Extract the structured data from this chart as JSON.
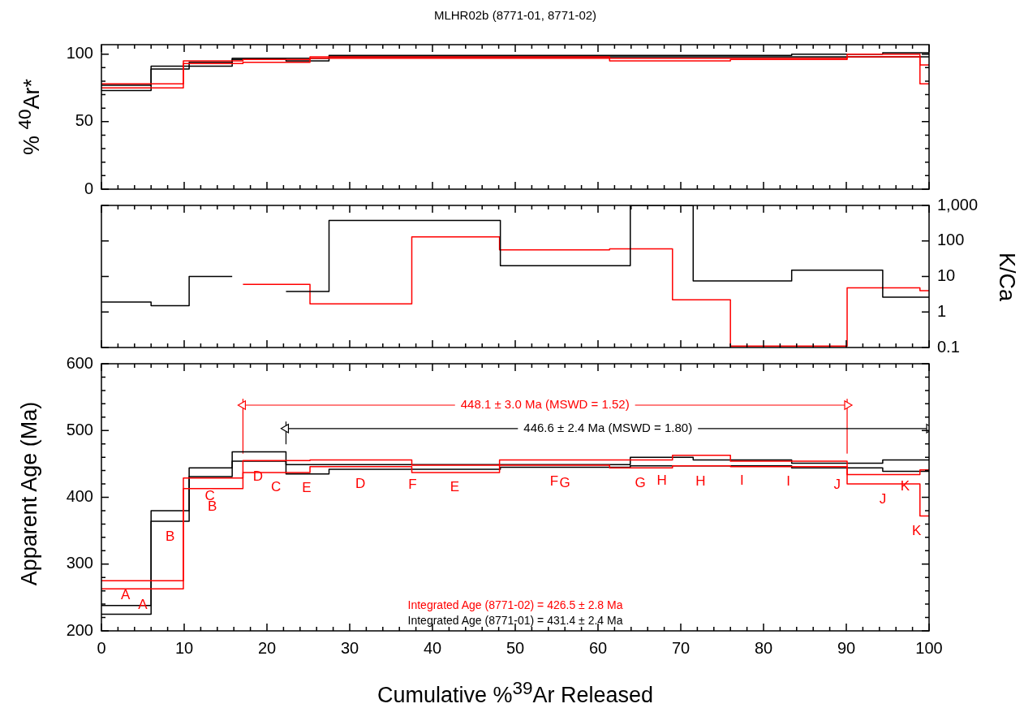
{
  "chart_data": [
    {
      "type": "step",
      "title": "MLHR02b (8771-01, 8771-02)",
      "ylabel": "% $^{40}$Ar*",
      "xlim": [
        0,
        100
      ],
      "xticks": [
        0,
        {
          "value": 2,
          "label": null
        },
        {
          "value": 4,
          "label": null
        },
        {
          "value": 6,
          "label": null
        },
        {
          "value": 8,
          "label": null
        },
        10,
        {
          "value": 12,
          "label": null
        },
        {
          "value": 14,
          "label": null
        },
        {
          "value": 16,
          "label": null
        },
        {
          "value": 18,
          "label": null
        },
        20,
        {
          "value": 22,
          "label": null
        },
        {
          "value": 24,
          "label": null
        },
        {
          "value": 26,
          "label": null
        },
        {
          "value": 28,
          "label": null
        },
        30,
        {
          "value": 32,
          "label": null
        },
        {
          "value": 34,
          "label": null
        },
        {
          "value": 36,
          "label": null
        },
        {
          "value": 38,
          "label": null
        },
        40,
        {
          "value": 42,
          "label": null
        },
        {
          "value": 44,
          "label": null
        },
        {
          "value": 46,
          "label": null
        },
        {
          "value": 48,
          "label": null
        },
        50,
        {
          "value": 52,
          "label": null
        },
        {
          "value": 54,
          "label": null
        },
        {
          "value": 56,
          "label": null
        },
        {
          "value": 58,
          "label": null
        },
        60,
        {
          "value": 62,
          "label": null
        },
        {
          "value": 64,
          "label": null
        },
        {
          "value": 66,
          "label": null
        },
        {
          "value": 68,
          "label": null
        },
        70,
        {
          "value": 72,
          "label": null
        },
        {
          "value": 74,
          "label": null
        },
        {
          "value": 76,
          "label": null
        },
        {
          "value": 78,
          "label": null
        },
        80,
        {
          "value": 82,
          "label": null
        },
        {
          "value": 84,
          "label": null
        },
        {
          "value": 86,
          "label": null
        },
        {
          "value": 88,
          "label": null
        },
        90,
        {
          "value": 92,
          "label": null
        },
        {
          "value": 94,
          "label": null
        },
        {
          "value": 96,
          "label": null
        },
        {
          "value": 98,
          "label": null
        },
        100
      ],
      "ylim": [
        0,
        107
      ],
      "yticks": [
        0,
        {
          "value": 10,
          "label": null
        },
        {
          "value": 20,
          "label": null
        },
        {
          "value": 30,
          "label": null
        },
        {
          "value": 40,
          "label": null
        },
        50,
        {
          "value": 60,
          "label": null
        },
        {
          "value": 70,
          "label": null
        },
        {
          "value": 80,
          "label": null
        },
        {
          "value": 90,
          "label": null
        },
        100
      ],
      "tick_labels": "y",
      "grid": false,
      "legend": false,
      "series": [
        {
          "color": "#ff0000",
          "x": [
            0,
            9.9,
            17.1,
            25.2,
            37.5,
            48.1,
            61.4,
            69.0,
            76.0,
            90.1,
            98.9,
            100
          ],
          "values": [
            78,
            95,
            96,
            98,
            98,
            98,
            97,
            97,
            97,
            100,
            92,
            92
          ]
        },
        {
          "color": "#ff0000",
          "x": [
            0,
            9.9,
            17.1,
            25.2,
            37.5,
            48.1,
            61.4,
            69.0,
            76.0,
            90.1,
            98.9,
            100
          ],
          "values": [
            75,
            93,
            94,
            97,
            97,
            97,
            95,
            95,
            96,
            98,
            78,
            78
          ]
        },
        {
          "color": "#000000",
          "x": [
            0,
            6.0,
            10.6,
            15.8,
            22.3,
            27.5,
            48.2,
            63.9,
            71.5,
            83.4,
            94.4,
            100
          ],
          "values": [
            77,
            91,
            94,
            97,
            97,
            99,
            99,
            99,
            99,
            100,
            101,
            101
          ]
        },
        {
          "color": "#000000",
          "x": [
            0,
            6.0,
            10.6,
            15.8,
            22.3,
            27.5,
            48.2,
            63.9,
            71.5,
            83.4,
            94.4,
            100
          ],
          "values": [
            73,
            89,
            91,
            96,
            95,
            98,
            98,
            98,
            98,
            98,
            98,
            98
          ]
        }
      ]
    },
    {
      "type": "step",
      "y2label": "K/Ca",
      "xlim": [
        0,
        100
      ],
      "xticks": [
        0,
        {
          "value": 2,
          "label": null
        },
        {
          "value": 4,
          "label": null
        },
        {
          "value": 6,
          "label": null
        },
        {
          "value": 8,
          "label": null
        },
        10,
        {
          "value": 12,
          "label": null
        },
        {
          "value": 14,
          "label": null
        },
        {
          "value": 16,
          "label": null
        },
        {
          "value": 18,
          "label": null
        },
        20,
        {
          "value": 22,
          "label": null
        },
        {
          "value": 24,
          "label": null
        },
        {
          "value": 26,
          "label": null
        },
        {
          "value": 28,
          "label": null
        },
        30,
        {
          "value": 32,
          "label": null
        },
        {
          "value": 34,
          "label": null
        },
        {
          "value": 36,
          "label": null
        },
        {
          "value": 38,
          "label": null
        },
        40,
        {
          "value": 42,
          "label": null
        },
        {
          "value": 44,
          "label": null
        },
        {
          "value": 46,
          "label": null
        },
        {
          "value": 48,
          "label": null
        },
        50,
        {
          "value": 52,
          "label": null
        },
        {
          "value": 54,
          "label": null
        },
        {
          "value": 56,
          "label": null
        },
        {
          "value": 58,
          "label": null
        },
        60,
        {
          "value": 62,
          "label": null
        },
        {
          "value": 64,
          "label": null
        },
        {
          "value": 66,
          "label": null
        },
        {
          "value": 68,
          "label": null
        },
        70,
        {
          "value": 72,
          "label": null
        },
        {
          "value": 74,
          "label": null
        },
        {
          "value": 76,
          "label": null
        },
        {
          "value": 78,
          "label": null
        },
        80,
        {
          "value": 82,
          "label": null
        },
        {
          "value": 84,
          "label": null
        },
        {
          "value": 86,
          "label": null
        },
        {
          "value": 88,
          "label": null
        },
        90,
        {
          "value": 92,
          "label": null
        },
        {
          "value": 94,
          "label": null
        },
        {
          "value": 96,
          "label": null
        },
        {
          "value": 98,
          "label": null
        },
        100
      ],
      "y2lim": [
        0.1,
        1000
      ],
      "y2ticks": [
        0.1,
        1,
        10,
        100,
        {
          "value": 1000,
          "label": "1,000"
        }
      ],
      "log": "y2",
      "tick_labels": "y",
      "grid": false,
      "legend": false,
      "series": [
        {
          "color": "#000000",
          "axis": "y2",
          "x": [
            0,
            6.0,
            10.6,
            15.8,
            22.3,
            27.5,
            48.2,
            63.9,
            71.5,
            83.4,
            94.4,
            100
          ],
          "values": [
            1.9,
            1.5,
            10,
            null,
            3.8,
            380,
            20,
            1000,
            7.5,
            15,
            2.6,
            2.6
          ]
        },
        {
          "color": "#ff0000",
          "axis": "y2",
          "x": [
            17.1,
            25.2,
            37.5,
            48.1,
            61.4,
            69.0,
            76.0,
            90.1,
            98.9,
            100
          ],
          "values": [
            6,
            1.7,
            130,
            56,
            60,
            2.2,
            0.11,
            4.8,
            4,
            4
          ]
        }
      ]
    },
    {
      "type": "step",
      "xlabel": "Cumulative %$^{39}$Ar Released",
      "ylabel": "Apparent Age (Ma)",
      "xlim": [
        0,
        100
      ],
      "xticks": [
        0,
        {
          "value": 2,
          "label": null
        },
        {
          "value": 4,
          "label": null
        },
        {
          "value": 6,
          "label": null
        },
        {
          "value": 8,
          "label": null
        },
        10,
        {
          "value": 12,
          "label": null
        },
        {
          "value": 14,
          "label": null
        },
        {
          "value": 16,
          "label": null
        },
        {
          "value": 18,
          "label": null
        },
        20,
        {
          "value": 22,
          "label": null
        },
        {
          "value": 24,
          "label": null
        },
        {
          "value": 26,
          "label": null
        },
        {
          "value": 28,
          "label": null
        },
        30,
        {
          "value": 32,
          "label": null
        },
        {
          "value": 34,
          "label": null
        },
        {
          "value": 36,
          "label": null
        },
        {
          "value": 38,
          "label": null
        },
        40,
        {
          "value": 42,
          "label": null
        },
        {
          "value": 44,
          "label": null
        },
        {
          "value": 46,
          "label": null
        },
        {
          "value": 48,
          "label": null
        },
        50,
        {
          "value": 52,
          "label": null
        },
        {
          "value": 54,
          "label": null
        },
        {
          "value": 56,
          "label": null
        },
        {
          "value": 58,
          "label": null
        },
        60,
        {
          "value": 62,
          "label": null
        },
        {
          "value": 64,
          "label": null
        },
        {
          "value": 66,
          "label": null
        },
        {
          "value": 68,
          "label": null
        },
        70,
        {
          "value": 72,
          "label": null
        },
        {
          "value": 74,
          "label": null
        },
        {
          "value": 76,
          "label": null
        },
        {
          "value": 78,
          "label": null
        },
        80,
        {
          "value": 82,
          "label": null
        },
        {
          "value": 84,
          "label": null
        },
        {
          "value": 86,
          "label": null
        },
        {
          "value": 88,
          "label": null
        },
        90,
        {
          "value": 92,
          "label": null
        },
        {
          "value": 94,
          "label": null
        },
        {
          "value": 96,
          "label": null
        },
        {
          "value": 98,
          "label": null
        },
        100
      ],
      "ylim": [
        200,
        600
      ],
      "yticks": [
        200,
        {
          "value": 220,
          "label": null
        },
        {
          "value": 240,
          "label": null
        },
        {
          "value": 260,
          "label": null
        },
        {
          "value": 280,
          "label": null
        },
        300,
        {
          "value": 320,
          "label": null
        },
        {
          "value": 340,
          "label": null
        },
        {
          "value": 360,
          "label": null
        },
        {
          "value": 380,
          "label": null
        },
        400,
        {
          "value": 420,
          "label": null
        },
        {
          "value": 440,
          "label": null
        },
        {
          "value": 460,
          "label": null
        },
        {
          "value": 480,
          "label": null
        },
        500,
        {
          "value": 520,
          "label": null
        },
        {
          "value": 540,
          "label": null
        },
        {
          "value": 560,
          "label": null
        },
        {
          "value": 580,
          "label": null
        },
        600
      ],
      "grid": false,
      "legend": false,
      "series": [
        {
          "color": "#ff0000",
          "x": [
            0,
            9.9,
            17.1,
            25.2,
            37.5,
            48.1,
            61.4,
            69.0,
            76.0,
            90.1,
            98.9,
            100
          ],
          "values": [
            275,
            429,
            455,
            456,
            448,
            456,
            456,
            463,
            454,
            434,
            441,
            441
          ]
        },
        {
          "color": "#ff0000",
          "x": [
            0,
            9.9,
            17.1,
            25.2,
            37.5,
            48.1,
            61.4,
            69.0,
            76.0,
            90.1,
            98.9,
            100
          ],
          "values": [
            263,
            413,
            437,
            446,
            437,
            448,
            444,
            447,
            446,
            420,
            372,
            372
          ]
        },
        {
          "color": "#000000",
          "x": [
            0,
            6.0,
            10.6,
            15.8,
            22.3,
            27.5,
            48.2,
            63.9,
            71.5,
            83.4,
            94.4,
            100
          ],
          "values": [
            238,
            380,
            444,
            468,
            449,
            449,
            449,
            460,
            456,
            451,
            456,
            456
          ]
        },
        {
          "color": "#000000",
          "x": [
            0,
            6.0,
            10.6,
            15.8,
            22.3,
            27.5,
            48.2,
            63.9,
            71.5,
            83.4,
            94.4,
            100
          ],
          "values": [
            225,
            364,
            431,
            454,
            435,
            442,
            445,
            447,
            447,
            444,
            439,
            439
          ]
        },
        {
          "type": "line",
          "color": "#ff0000",
          "marker": "triangle",
          "x": [
            17.1,
            90.1
          ],
          "values": [
            538,
            538
          ]
        },
        {
          "type": "line",
          "color": "#000000",
          "marker": "triangle",
          "x": [
            22.3,
            100
          ],
          "values": [
            503,
            503
          ]
        },
        {
          "type": "line",
          "color": "#ff0000",
          "x": [
            17.1,
            17.1
          ],
          "values": [
            547,
            466
          ]
        },
        {
          "type": "line",
          "color": "#ff0000",
          "x": [
            90.1,
            90.1
          ],
          "values": [
            547,
            466
          ]
        },
        {
          "type": "line",
          "color": "#000000",
          "x": [
            22.3,
            22.3
          ],
          "values": [
            513,
            480
          ]
        }
      ],
      "annotations": [
        {
          "text": "448.1 ± 3.0 Ma (MSWD = 1.52)",
          "x": 53.6,
          "y": 538
        },
        {
          "text": "446.6 ± 2.4 Ma (MSWD = 1.80)",
          "x": 61.2,
          "y": 503
        },
        "Integrated Age (8771-02) = 426.5 ± 2.8 Ma",
        "Integrated Age (8771-01) = 431.4 ± 2.4 Ma",
        "A",
        "A",
        "B",
        "C",
        "B",
        "D",
        "C",
        "E",
        "D",
        "F",
        "E",
        "F",
        "G",
        "G",
        "H",
        "H",
        "I",
        "I",
        "J",
        "J",
        "K",
        "K"
      ]
    }
  ]
}
